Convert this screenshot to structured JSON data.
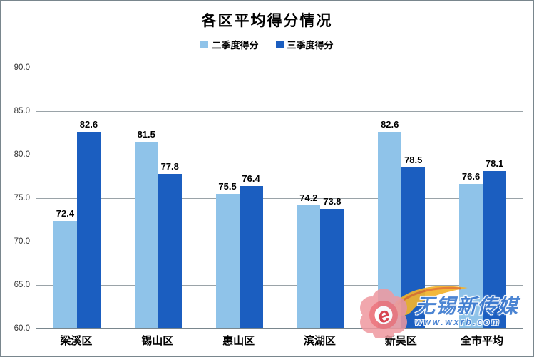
{
  "chart_data": {
    "type": "bar",
    "title": "各区平均得分情况",
    "categories": [
      "梁溪区",
      "锡山区",
      "惠山区",
      "滨湖区",
      "新吴区",
      "全市平均"
    ],
    "series": [
      {
        "key": "q2",
        "name": "二季度得分",
        "color": "#8FC3E9",
        "values": [
          72.4,
          81.5,
          75.5,
          74.2,
          82.6,
          76.6
        ]
      },
      {
        "key": "q3",
        "name": "三季度得分",
        "color": "#1B5EC0",
        "values": [
          82.6,
          77.8,
          76.4,
          73.8,
          78.5,
          78.1
        ]
      }
    ],
    "ylim": [
      60,
      90
    ],
    "ytick_labels": [
      "90.0",
      "85.0",
      "80.0",
      "75.0",
      "70.0",
      "65.0",
      "60.0"
    ],
    "grid": "horizontal",
    "legend_position": "top",
    "value_labels": true
  },
  "watermark": {
    "brand": "无锡新传媒",
    "url": "www.wxrb.com"
  }
}
